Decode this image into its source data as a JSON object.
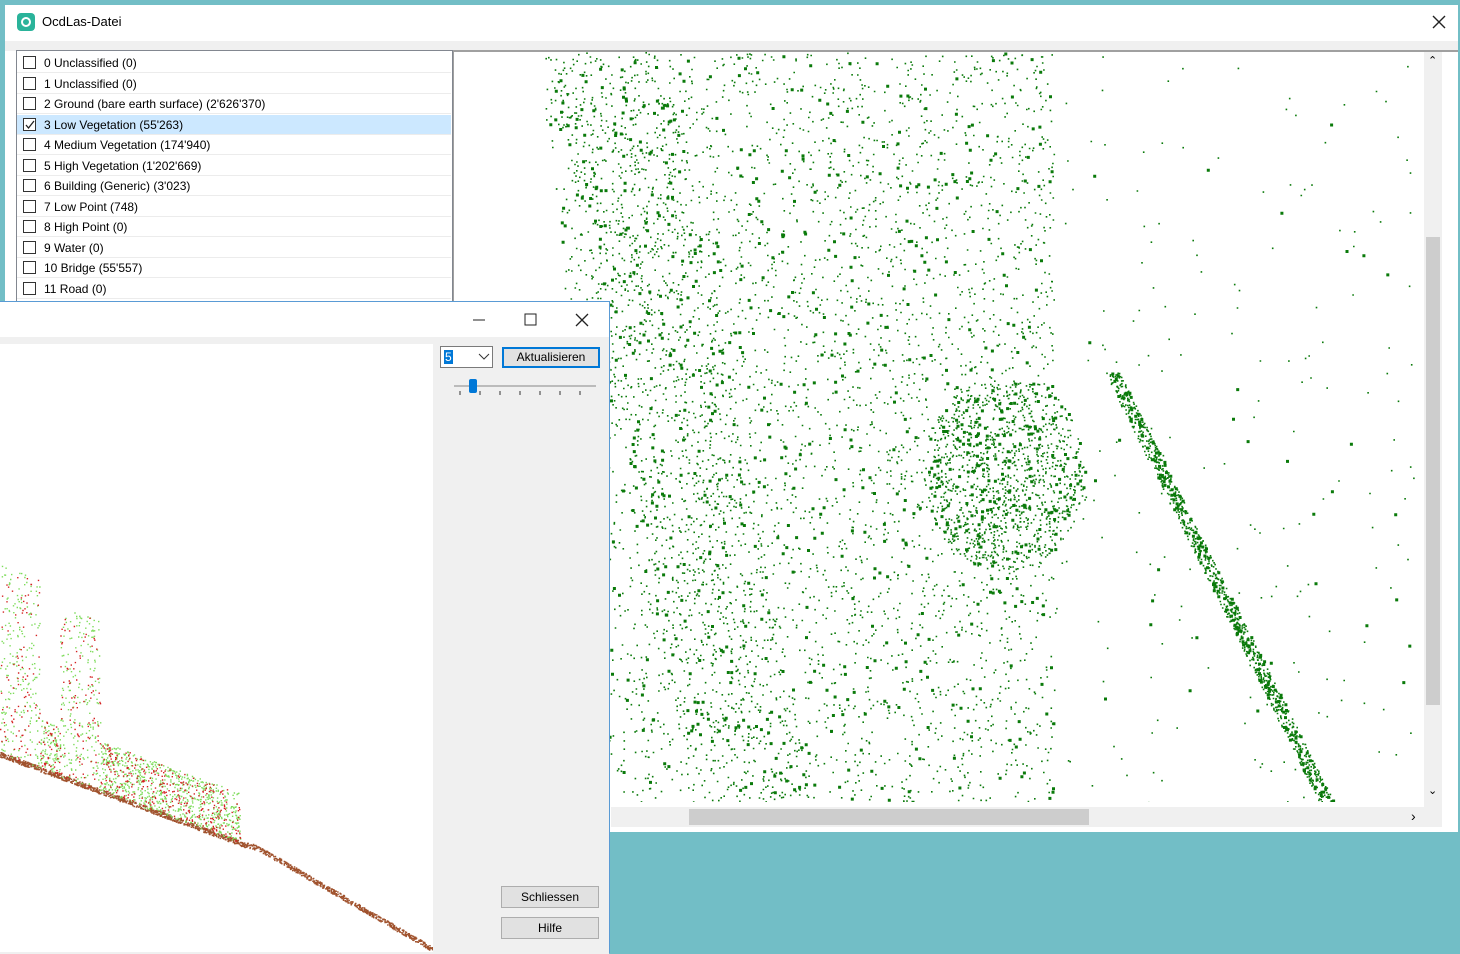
{
  "window": {
    "title": "OcdLas-Datei"
  },
  "classes": {
    "items": [
      "0 Unclassified (0)",
      "1 Unclassified (0)",
      "2 Ground (bare earth surface) (2'626'370)",
      "3 Low Vegetation (55'263)",
      "4 Medium Vegetation (174'940)",
      "5 High Vegetation (1'202'669)",
      "6 Building (Generic) (3'023)",
      "7 Low Point (748)",
      "8 High Point (0)",
      "9 Water (0)",
      "10 Bridge (55'557)",
      "11 Road (0)"
    ],
    "checked_index": 3
  },
  "profile_window": {
    "dropdown": "5",
    "refresh_button": "Aktualisieren",
    "close_button": "Schliessen",
    "help_button": "Hilfe"
  }
}
